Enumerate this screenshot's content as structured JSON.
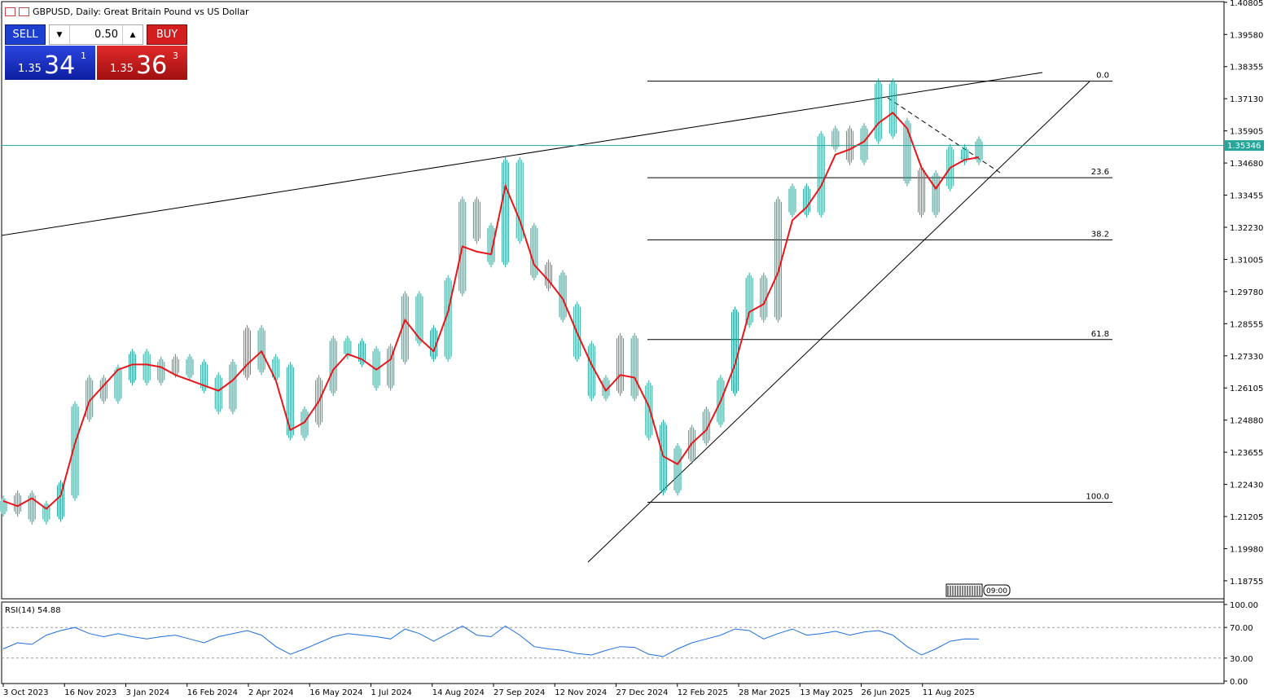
{
  "header": {
    "symbol_title": "GBPUSD, Daily:  Great Britain Pound vs US Dollar"
  },
  "trade_panel": {
    "sell_label": "SELL",
    "buy_label": "BUY",
    "volume": "0.50",
    "sell_price_prefix": "1.35",
    "sell_price_big": "34",
    "sell_price_sup": "1",
    "buy_price_prefix": "1.35",
    "buy_price_big": "36",
    "buy_price_sup": "3"
  },
  "colors": {
    "candle": "#26a69a",
    "ma_line": "#e8161b",
    "rsi_line": "#1e6fe0",
    "current_price_line": "#26a69a",
    "sell": "#1d3fd0",
    "buy": "#d21e1e"
  },
  "chart_data": [
    {
      "type": "line",
      "title": "GBPUSD, Daily:  Great Britain Pound vs US Dollar",
      "current_price": 1.35346,
      "current_price_label": "1.35346",
      "ylim": [
        1.181,
        1.408
      ],
      "y_ticks": [
        1.40805,
        1.3958,
        1.38355,
        1.3713,
        1.35905,
        1.3468,
        1.33455,
        1.3223,
        1.31005,
        1.2978,
        1.28555,
        1.2733,
        1.26105,
        1.2488,
        1.23655,
        1.2243,
        1.21205,
        1.1998,
        1.18755
      ],
      "y_tick_labels": [
        "1.40805",
        "1.39580",
        "1.38355",
        "1.37130",
        "1.35905",
        "1.34680",
        "1.33455",
        "1.32230",
        "1.31005",
        "1.29780",
        "1.28555",
        "1.27330",
        "1.26105",
        "1.24880",
        "1.23655",
        "1.22430",
        "1.21205",
        "1.19980",
        "1.18755"
      ],
      "x_labels": [
        "3 Oct 2023",
        "16 Nov 2023",
        "3 Jan 2024",
        "16 Feb 2024",
        "2 Apr 2024",
        "16 May 2024",
        "1 Jul 2024",
        "14 Aug 2024",
        "27 Sep 2024",
        "12 Nov 2024",
        "27 Dec 2024",
        "12 Feb 2025",
        "28 Mar 2025",
        "13 May 2025",
        "26 Jun 2025",
        "11 Aug 2025"
      ],
      "time_label": "09:00",
      "series": [
        {
          "values": [
            1.216,
            1.218,
            1.213,
            1.214,
            1.222,
            1.252,
            1.262,
            1.259,
            1.266,
            1.272,
            1.266,
            1.269,
            1.27,
            1.268,
            1.263,
            1.255,
            1.268,
            1.281,
            1.27,
            1.267,
            1.245,
            1.25,
            1.262,
            1.277,
            1.276,
            1.273,
            1.264,
            1.274,
            1.294,
            1.281,
            1.275,
            1.3,
            1.33,
            1.32,
            1.311,
            1.345,
            1.32,
            1.306,
            1.302,
            1.29,
            1.275,
            1.26,
            1.262,
            1.278,
            1.26,
            1.245,
            1.224,
            1.236,
            1.243,
            1.25,
            1.262,
            1.288,
            1.301,
            1.29,
            1.33,
            1.335,
            1.33,
            1.355,
            1.357,
            1.35,
            1.358,
            1.375,
            1.36,
            1.342,
            1.33,
            1.34,
            1.35,
            1.35,
            1.353
          ]
        },
        {
          "values": [
            1.218,
            1.216,
            1.219,
            1.215,
            1.22,
            1.24,
            1.256,
            1.262,
            1.268,
            1.27,
            1.27,
            1.269,
            1.266,
            1.264,
            1.262,
            1.26,
            1.264,
            1.27,
            1.275,
            1.264,
            1.245,
            1.248,
            1.256,
            1.268,
            1.274,
            1.272,
            1.268,
            1.272,
            1.287,
            1.28,
            1.275,
            1.29,
            1.315,
            1.313,
            1.312,
            1.338,
            1.325,
            1.308,
            1.302,
            1.295,
            1.282,
            1.27,
            1.26,
            1.266,
            1.265,
            1.254,
            1.235,
            1.232,
            1.24,
            1.245,
            1.256,
            1.27,
            1.29,
            1.293,
            1.305,
            1.325,
            1.33,
            1.338,
            1.35,
            1.352,
            1.355,
            1.362,
            1.366,
            1.36,
            1.345,
            1.337,
            1.345,
            1.348,
            1.349
          ]
        }
      ],
      "fibonacci_levels": [
        {
          "label": "0.0",
          "value": 1.378
        },
        {
          "label": "23.6",
          "value": 1.3412
        },
        {
          "label": "38.2",
          "value": 1.3175
        },
        {
          "label": "61.8",
          "value": 1.2795
        },
        {
          "label": "100.0",
          "value": 1.2175
        }
      ]
    },
    {
      "type": "line",
      "title": "RSI(14) 54.88",
      "ylim": [
        0,
        100
      ],
      "y_ticks": [
        0,
        30,
        70,
        100
      ],
      "y_tick_labels": [
        "0.00",
        "30.00",
        "70.00",
        "100.00"
      ],
      "levels": [
        30,
        70
      ],
      "series": [
        {
          "values": [
            42,
            50,
            48,
            60,
            66,
            70,
            62,
            58,
            62,
            58,
            55,
            58,
            60,
            55,
            50,
            58,
            62,
            66,
            60,
            45,
            35,
            42,
            50,
            58,
            62,
            60,
            58,
            55,
            68,
            62,
            52,
            62,
            72,
            60,
            58,
            72,
            60,
            45,
            42,
            40,
            36,
            34,
            40,
            45,
            44,
            35,
            32,
            42,
            50,
            55,
            60,
            68,
            66,
            55,
            62,
            68,
            60,
            62,
            65,
            60,
            64,
            66,
            60,
            45,
            34,
            42,
            52,
            55,
            54.88
          ]
        }
      ]
    }
  ]
}
